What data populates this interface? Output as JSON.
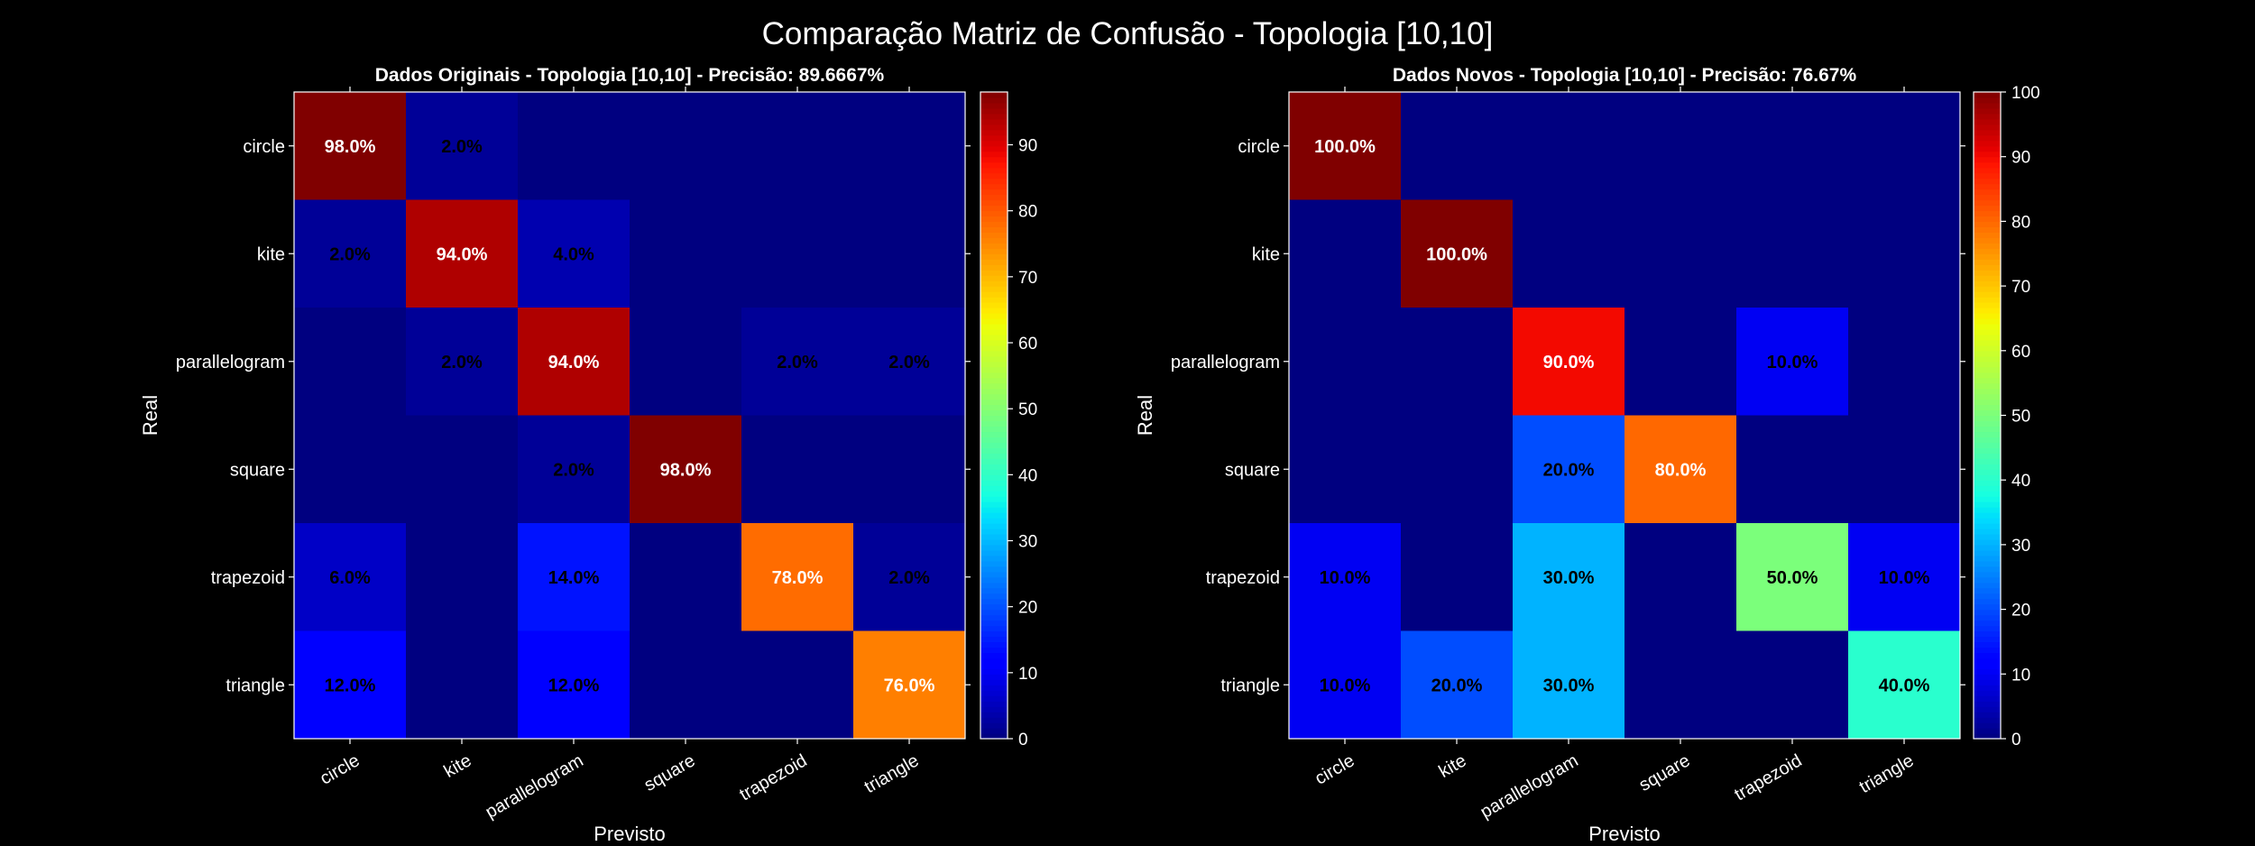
{
  "suptitle": "Comparação Matriz de Confusão - Topologia [10,10]",
  "chart_data": [
    {
      "type": "heatmap",
      "title": "Dados Originais - Topologia [10,10] - Precisão: 89.6667%",
      "xlabel": "Previsto",
      "ylabel": "Real",
      "categories_x": [
        "circle",
        "kite",
        "parallelogram",
        "square",
        "trapezoid",
        "triangle"
      ],
      "categories_y": [
        "circle",
        "kite",
        "parallelogram",
        "square",
        "trapezoid",
        "triangle"
      ],
      "values": [
        [
          98,
          2,
          0,
          0,
          0,
          0
        ],
        [
          2,
          94,
          4,
          0,
          0,
          0
        ],
        [
          0,
          2,
          94,
          0,
          2,
          2
        ],
        [
          0,
          0,
          2,
          98,
          0,
          0
        ],
        [
          6,
          0,
          14,
          0,
          78,
          2
        ],
        [
          12,
          0,
          12,
          0,
          0,
          76
        ]
      ],
      "value_labels": [
        [
          "98.0%",
          "2.0%",
          "",
          "",
          "",
          ""
        ],
        [
          "2.0%",
          "94.0%",
          "4.0%",
          "",
          "",
          ""
        ],
        [
          "",
          "2.0%",
          "94.0%",
          "",
          "2.0%",
          "2.0%"
        ],
        [
          "",
          "",
          "2.0%",
          "98.0%",
          "",
          ""
        ],
        [
          "6.0%",
          "",
          "14.0%",
          "",
          "78.0%",
          "2.0%"
        ],
        [
          "12.0%",
          "",
          "12.0%",
          "",
          "",
          "76.0%"
        ]
      ],
      "colormap": "jet",
      "color_range": [
        0,
        98
      ],
      "colorbar_ticks": [
        0,
        10,
        20,
        30,
        40,
        50,
        60,
        70,
        80,
        90
      ]
    },
    {
      "type": "heatmap",
      "title": "Dados Novos - Topologia [10,10] - Precisão: 76.67%",
      "xlabel": "Previsto",
      "ylabel": "Real",
      "categories_x": [
        "circle",
        "kite",
        "parallelogram",
        "square",
        "trapezoid",
        "triangle"
      ],
      "categories_y": [
        "circle",
        "kite",
        "parallelogram",
        "square",
        "trapezoid",
        "triangle"
      ],
      "values": [
        [
          100,
          0,
          0,
          0,
          0,
          0
        ],
        [
          0,
          100,
          0,
          0,
          0,
          0
        ],
        [
          0,
          0,
          90,
          0,
          10,
          0
        ],
        [
          0,
          0,
          20,
          80,
          0,
          0
        ],
        [
          10,
          0,
          30,
          0,
          50,
          10
        ],
        [
          10,
          20,
          30,
          0,
          0,
          40
        ]
      ],
      "value_labels": [
        [
          "100.0%",
          "",
          "",
          "",
          "",
          ""
        ],
        [
          "",
          "100.0%",
          "",
          "",
          "",
          ""
        ],
        [
          "",
          "",
          "90.0%",
          "",
          "10.0%",
          ""
        ],
        [
          "",
          "",
          "20.0%",
          "80.0%",
          "",
          ""
        ],
        [
          "10.0%",
          "",
          "30.0%",
          "",
          "50.0%",
          "10.0%"
        ],
        [
          "10.0%",
          "20.0%",
          "30.0%",
          "",
          "",
          "40.0%"
        ]
      ],
      "colormap": "jet",
      "color_range": [
        0,
        100
      ],
      "colorbar_ticks": [
        0,
        10,
        20,
        30,
        40,
        50,
        60,
        70,
        80,
        90,
        100
      ]
    }
  ]
}
